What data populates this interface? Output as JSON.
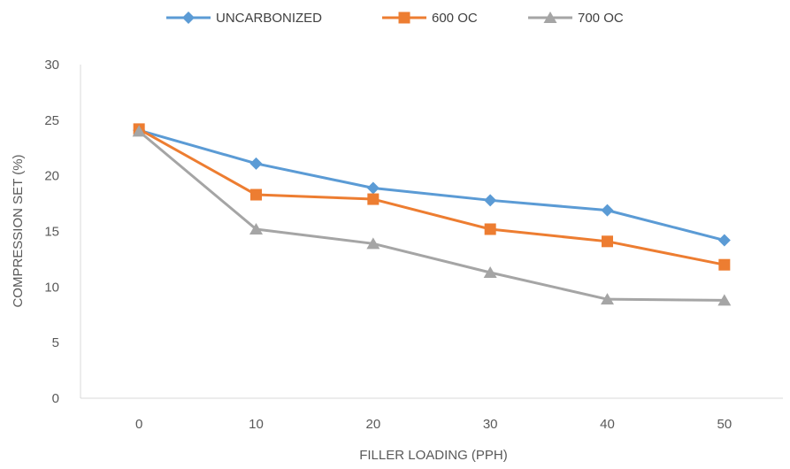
{
  "chart_data": {
    "type": "line",
    "title": "",
    "xlabel": "FILLER LOADING (PPH)",
    "ylabel": "COMPRESSION SET (%)",
    "categories": [
      "0",
      "10",
      "20",
      "30",
      "40",
      "50"
    ],
    "y_ticks": [
      "0",
      "5",
      "10",
      "15",
      "20",
      "25",
      "30"
    ],
    "ylim": [
      0,
      30
    ],
    "grid": false,
    "legend_position": "top",
    "series": [
      {
        "name": "UNCARBONIZED",
        "marker": "diamond",
        "color": "#5B9BD5",
        "values": [
          24.1,
          21.1,
          18.9,
          17.8,
          16.9,
          14.2
        ]
      },
      {
        "name": "600 OC",
        "marker": "square",
        "color": "#ED7D31",
        "values": [
          24.2,
          18.3,
          17.9,
          15.2,
          14.1,
          12.0
        ]
      },
      {
        "name": "700 OC",
        "marker": "triangle",
        "color": "#A5A5A5",
        "values": [
          24.0,
          15.2,
          13.9,
          11.3,
          8.9,
          8.8
        ]
      }
    ]
  }
}
